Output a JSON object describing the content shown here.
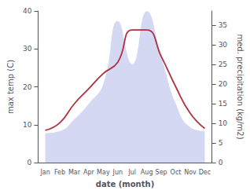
{
  "chart_data": {
    "type": "line",
    "xlabel": "date (month)",
    "ylabel": "max temp (C)",
    "y2label": "med. precipitation (kg/m2)",
    "categories": [
      "Jan",
      "Feb",
      "Mar",
      "Apr",
      "May",
      "Jun",
      "Jul",
      "Aug",
      "Sep",
      "Oct",
      "Nov",
      "Dec"
    ],
    "series": [
      {
        "type": "area",
        "axis": "y2",
        "color": "#b0b8e8",
        "values": [
          7.5,
          8.0,
          11.0,
          15.0,
          20.0,
          36.0,
          25.0,
          38.5,
          27.0,
          15.0,
          9.0,
          8.0
        ]
      },
      {
        "type": "line",
        "color": "#b03040",
        "values": [
          8.5,
          10.5,
          15.5,
          19.5,
          23.5,
          26.5,
          35.0,
          35.0,
          28.0,
          20.0,
          13.0,
          9.0
        ]
      }
    ],
    "ylim": [
      0,
      40
    ],
    "yticks": [
      0,
      10,
      20,
      30,
      40
    ],
    "y2lim": [
      0,
      38.57
    ],
    "y2ticks": [
      0,
      5,
      10,
      15,
      20,
      25,
      30,
      35
    ],
    "grid": false
  }
}
